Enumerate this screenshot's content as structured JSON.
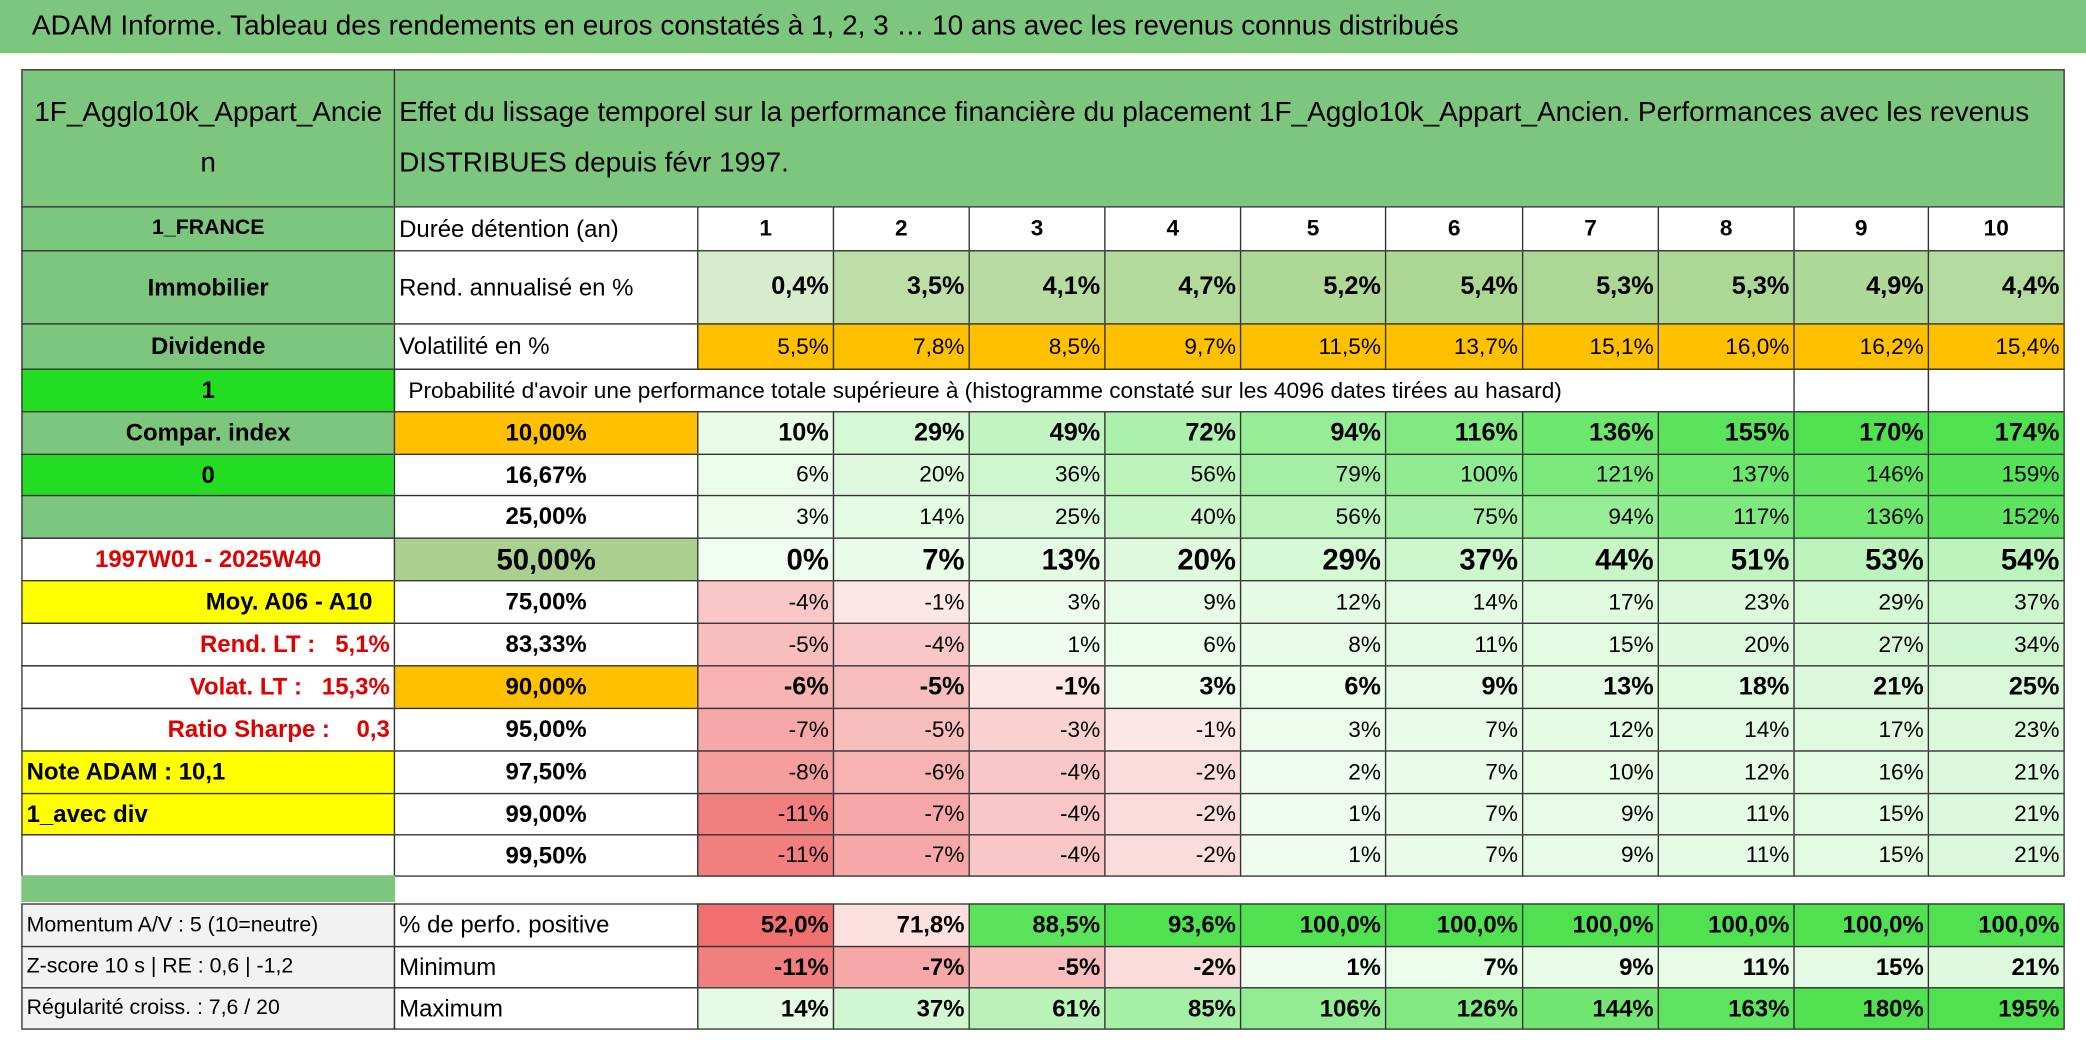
{
  "header": {
    "title": "ADAM Informe. Tableau des rendements en euros constatés à 1, 2, 3 … 10 ans avec les revenus connus distribués"
  },
  "table": {
    "name": "1F_Agglo10k_Appart_Ancien",
    "description": "Effet du lissage temporel sur la performance financière du placement 1F_Agglo10k_Appart_Ancien. Performances avec les revenus DISTRIBUES depuis févr 1997.",
    "rows": [
      {
        "side": "1_FRANCE",
        "label": "Durée détention (an)",
        "cells": [
          "1",
          "2",
          "3",
          "4",
          "5",
          "6",
          "7",
          "8",
          "9",
          "10"
        ]
      },
      {
        "side": "Immobilier",
        "label": "Rend. annualisé en %",
        "cells": [
          "0,4%",
          "3,5%",
          "4,1%",
          "4,7%",
          "5,2%",
          "5,4%",
          "5,3%",
          "5,3%",
          "4,9%",
          "4,4%"
        ]
      },
      {
        "side": "Dividende",
        "label": "Volatilité en %",
        "cells": [
          "5,5%",
          "7,8%",
          "8,5%",
          "9,7%",
          "11,5%",
          "13,7%",
          "15,1%",
          "16,0%",
          "16,2%",
          "15,4%"
        ]
      },
      {
        "side": "1",
        "label": "Probabilité d'avoir une performance totale supérieure à (histogramme constaté sur les 4096 dates tirées au hasard)"
      },
      {
        "side": "Compar. index",
        "label": "10,00%",
        "cells": [
          "10%",
          "29%",
          "49%",
          "72%",
          "94%",
          "116%",
          "136%",
          "155%",
          "170%",
          "174%"
        ]
      },
      {
        "side": "0",
        "label": "16,67%",
        "cells": [
          "6%",
          "20%",
          "36%",
          "56%",
          "79%",
          "100%",
          "121%",
          "137%",
          "146%",
          "159%"
        ]
      },
      {
        "label": "25,00%",
        "cells": [
          "3%",
          "14%",
          "25%",
          "40%",
          "56%",
          "75%",
          "94%",
          "117%",
          "136%",
          "152%"
        ]
      },
      {
        "side": "1997W01 - 2025W40",
        "label": "50,00%",
        "cells": [
          "0%",
          "7%",
          "13%",
          "20%",
          "29%",
          "37%",
          "44%",
          "51%",
          "53%",
          "54%"
        ]
      },
      {
        "side": "Moy. A06 - A10",
        "label": "75,00%",
        "cells": [
          "-4%",
          "-1%",
          "3%",
          "9%",
          "12%",
          "14%",
          "17%",
          "23%",
          "29%",
          "37%"
        ]
      },
      {
        "side": "Rend. LT :   5,1%",
        "label": "83,33%",
        "cells": [
          "-5%",
          "-4%",
          "1%",
          "6%",
          "8%",
          "11%",
          "15%",
          "20%",
          "27%",
          "34%"
        ]
      },
      {
        "side": "Volat. LT :   15,3%",
        "label": "90,00%",
        "cells": [
          "-6%",
          "-5%",
          "-1%",
          "3%",
          "6%",
          "9%",
          "13%",
          "18%",
          "21%",
          "25%"
        ]
      },
      {
        "side": "Ratio Sharpe :    0,3",
        "label": "95,00%",
        "cells": [
          "-7%",
          "-5%",
          "-3%",
          "-1%",
          "3%",
          "7%",
          "12%",
          "14%",
          "17%",
          "23%"
        ]
      },
      {
        "side": "Note ADAM : 10,1",
        "label": "97,50%",
        "cells": [
          "-8%",
          "-6%",
          "-4%",
          "-2%",
          "2%",
          "7%",
          "10%",
          "12%",
          "16%",
          "21%"
        ]
      },
      {
        "side": "1_avec div",
        "label": "99,00%",
        "cells": [
          "-11%",
          "-7%",
          "-4%",
          "-2%",
          "1%",
          "7%",
          "9%",
          "11%",
          "15%",
          "21%"
        ]
      },
      {
        "label": "99,50%",
        "cells": [
          "-11%",
          "-7%",
          "-4%",
          "-2%",
          "1%",
          "7%",
          "9%",
          "11%",
          "15%",
          "21%"
        ]
      }
    ],
    "footer_rows": [
      {
        "side": "Momentum A/V : 5 (10=neutre)",
        "label": "% de perfo. positive",
        "cells": [
          "52,0%",
          "71,8%",
          "88,5%",
          "93,6%",
          "100,0%",
          "100,0%",
          "100,0%",
          "100,0%",
          "100,0%",
          "100,0%"
        ]
      },
      {
        "side": "Z-score 10 s | RE : 0,6 | -1,2",
        "label": "Minimum",
        "cells": [
          "-11%",
          "-7%",
          "-5%",
          "-2%",
          "1%",
          "7%",
          "9%",
          "11%",
          "15%",
          "21%"
        ]
      },
      {
        "side": "Régularité croiss. : 7,6 / 20",
        "label": "Maximum",
        "cells": [
          "14%",
          "37%",
          "61%",
          "85%",
          "106%",
          "126%",
          "144%",
          "163%",
          "180%",
          "195%"
        ]
      }
    ]
  }
}
